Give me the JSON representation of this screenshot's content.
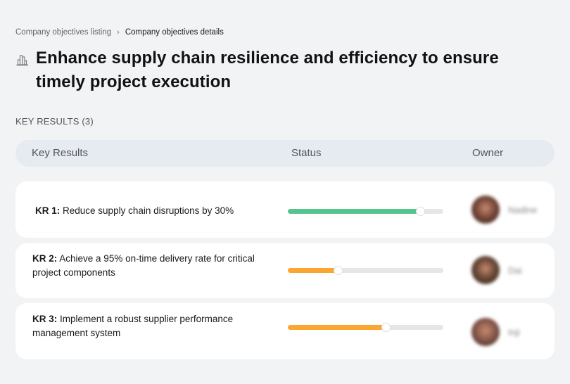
{
  "breadcrumb": {
    "parent": "Company objectives listing",
    "separator": "›",
    "current": "Company objectives details"
  },
  "objective": {
    "icon": "building-icon",
    "title": "Enhance supply chain resilience and efficiency to ensure timely project execution"
  },
  "key_results_section": {
    "label": "KEY RESULTS (3)"
  },
  "table": {
    "headers": {
      "key_results": "Key Results",
      "status": "Status",
      "owner": "Owner"
    },
    "rows": [
      {
        "prefix": "KR 1:",
        "text": " Reduce supply chain disruptions by 30%",
        "progress": 85,
        "progress_color": "#56c48e",
        "owner_name": "Nadine",
        "avatar_color": "#7a4a3c"
      },
      {
        "prefix": "KR 2:",
        "text": " Achieve a 95% on-time delivery rate for critical project components",
        "progress": 32,
        "progress_color": "#fba630",
        "owner_name": "Dai",
        "avatar_color": "#6b4a38"
      },
      {
        "prefix": "KR 3:",
        "text": " Implement a robust supplier performance management system",
        "progress": 63,
        "progress_color": "#fba630",
        "owner_name": "Inji",
        "avatar_color": "#8a5a4c"
      }
    ]
  }
}
